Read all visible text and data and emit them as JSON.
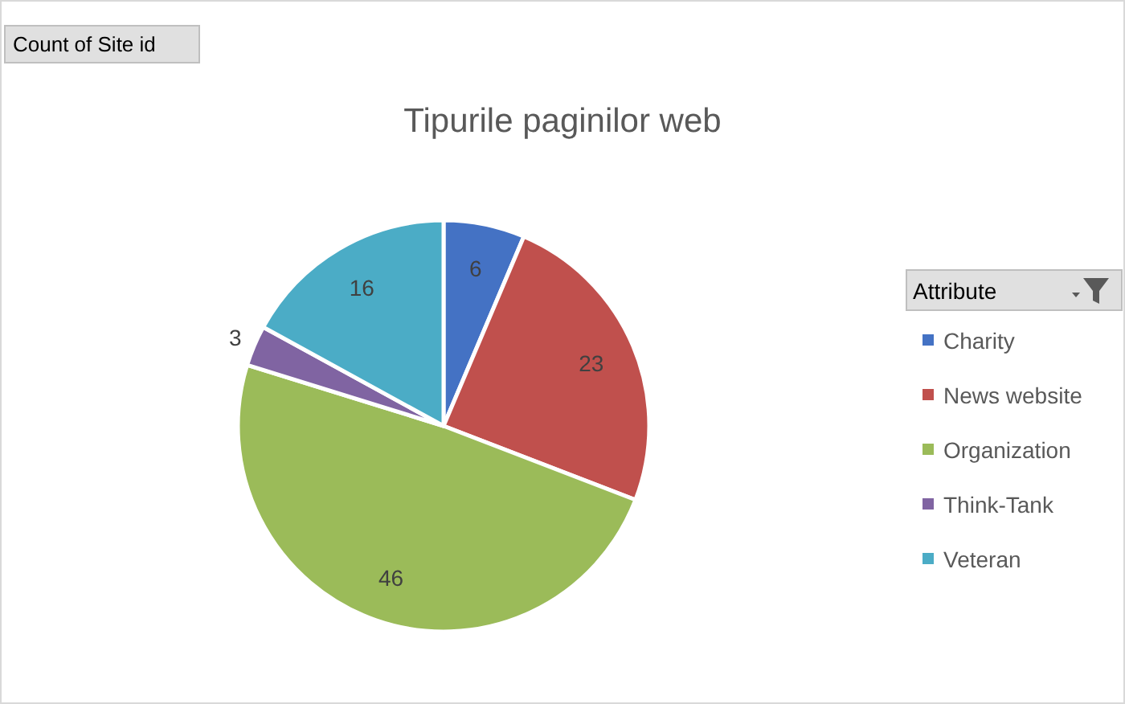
{
  "chart_data": {
    "type": "pie",
    "title": "Tipurile paginilor web",
    "legend_title": "Attribute",
    "legend": "right",
    "data_labels": true,
    "annotations": [
      "Count of Site id"
    ],
    "categories": [
      "Charity",
      "News website",
      "Organization",
      "Think-Tank",
      "Veteran"
    ],
    "values": [
      6,
      23,
      46,
      3,
      16
    ],
    "colors": [
      "#4472c4",
      "#c0504d",
      "#9bbb59",
      "#8064a2",
      "#4bacc6"
    ]
  }
}
